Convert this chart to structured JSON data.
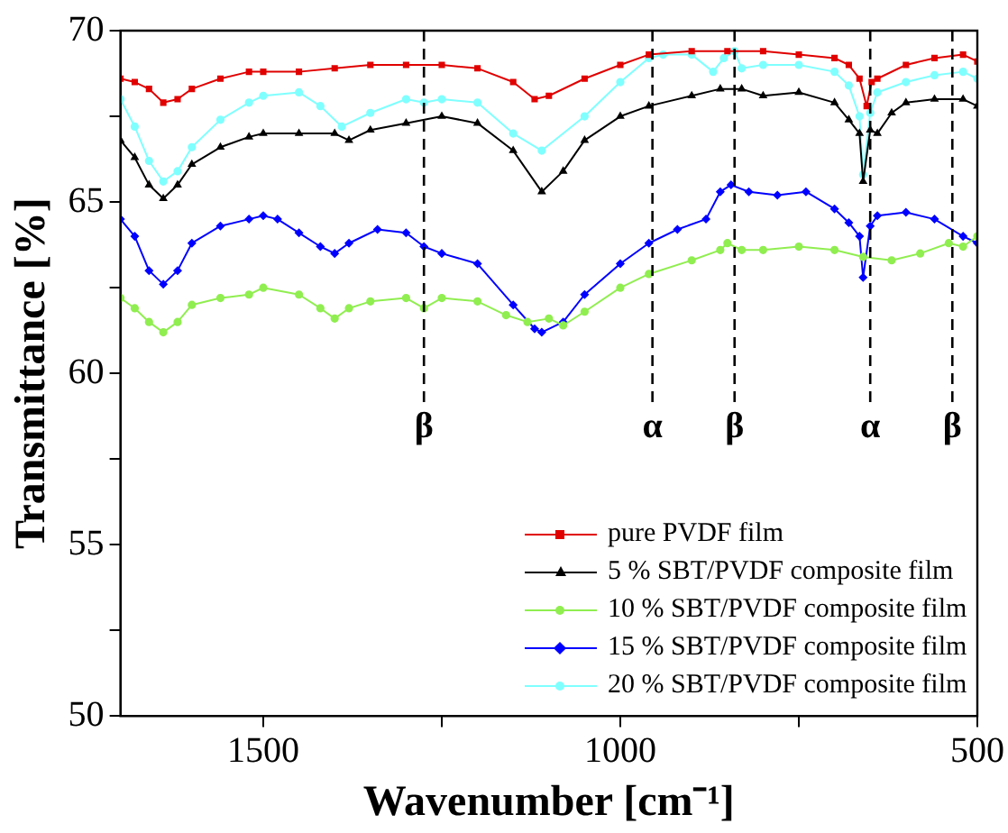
{
  "chart_data": {
    "type": "line",
    "xlabel": "Wavenumber [cm⁻¹]",
    "ylabel": "Transmittance [%]",
    "xlim": [
      1700,
      500
    ],
    "xticks": [
      1500,
      {
        "value": 1250,
        "label": null
      },
      1000,
      {
        "value": 750,
        "label": null
      },
      500
    ],
    "ylim": [
      50,
      70
    ],
    "yticks": [
      50,
      {
        "value": 52.5,
        "label": null
      },
      55,
      {
        "value": 57.5,
        "label": null
      },
      60,
      {
        "value": 62.5,
        "label": null
      },
      65,
      {
        "value": 67.5,
        "label": null
      },
      70
    ],
    "grid": false,
    "legend": "bottom right",
    "line_style": "solid",
    "ref_lines": [
      {
        "axis": "x",
        "value": 1275,
        "label": "β",
        "color": "#000000",
        "line_style": "dashed"
      },
      {
        "axis": "x",
        "value": 955,
        "label": "α",
        "color": "#000000",
        "line_style": "dashed"
      },
      {
        "axis": "x",
        "value": 840,
        "label": "β",
        "color": "#000000",
        "line_style": "dashed"
      },
      {
        "axis": "x",
        "value": 650,
        "label": "α",
        "color": "#000000",
        "line_style": "dashed"
      },
      {
        "axis": "x",
        "value": 535,
        "label": "β",
        "color": "#000000",
        "line_style": "dashed"
      }
    ],
    "series": [
      {
        "name": "pure PVDF film",
        "color": "#e00000",
        "marker": "square",
        "x": [
          1700,
          1680,
          1660,
          1640,
          1620,
          1600,
          1560,
          1520,
          1500,
          1450,
          1400,
          1350,
          1300,
          1250,
          1200,
          1150,
          1120,
          1100,
          1050,
          1000,
          960,
          900,
          850,
          800,
          750,
          700,
          680,
          665,
          655,
          648,
          640,
          600,
          560,
          520,
          500
        ],
        "values": [
          68.6,
          68.5,
          68.3,
          67.9,
          68.0,
          68.3,
          68.6,
          68.8,
          68.8,
          68.8,
          68.9,
          69.0,
          69.0,
          69.0,
          68.9,
          68.5,
          68.0,
          68.1,
          68.6,
          69.0,
          69.3,
          69.4,
          69.4,
          69.4,
          69.3,
          69.2,
          69.0,
          68.6,
          67.8,
          68.5,
          68.6,
          69.0,
          69.2,
          69.3,
          69.1
        ]
      },
      {
        "name": "5 % SBT/PVDF composite film",
        "color": "#000000",
        "marker": "triangle",
        "x": [
          1700,
          1680,
          1660,
          1640,
          1620,
          1600,
          1560,
          1520,
          1500,
          1450,
          1400,
          1380,
          1350,
          1300,
          1250,
          1200,
          1150,
          1110,
          1080,
          1050,
          1000,
          960,
          900,
          860,
          830,
          800,
          750,
          700,
          680,
          665,
          660,
          650,
          640,
          620,
          600,
          560,
          520,
          500
        ],
        "values": [
          66.8,
          66.3,
          65.5,
          65.1,
          65.5,
          66.1,
          66.6,
          66.9,
          67.0,
          67.0,
          67.0,
          66.8,
          67.1,
          67.3,
          67.5,
          67.3,
          66.5,
          65.3,
          65.9,
          66.8,
          67.5,
          67.8,
          68.1,
          68.3,
          68.3,
          68.1,
          68.2,
          67.9,
          67.4,
          67.0,
          65.6,
          67.1,
          67.0,
          67.6,
          67.9,
          68.0,
          68.0,
          67.8
        ]
      },
      {
        "name": "10 % SBT/PVDF composite film",
        "color": "#90ee50",
        "marker": "circle",
        "x": [
          1700,
          1680,
          1660,
          1640,
          1620,
          1600,
          1560,
          1520,
          1500,
          1450,
          1420,
          1400,
          1380,
          1350,
          1300,
          1275,
          1250,
          1200,
          1160,
          1130,
          1100,
          1080,
          1050,
          1000,
          960,
          900,
          860,
          850,
          830,
          800,
          750,
          700,
          660,
          620,
          580,
          540,
          520,
          500
        ],
        "values": [
          62.2,
          61.9,
          61.5,
          61.2,
          61.5,
          62.0,
          62.2,
          62.3,
          62.5,
          62.3,
          61.9,
          61.6,
          61.9,
          62.1,
          62.2,
          61.9,
          62.2,
          62.1,
          61.7,
          61.5,
          61.6,
          61.4,
          61.8,
          62.5,
          62.9,
          63.3,
          63.6,
          63.8,
          63.6,
          63.6,
          63.7,
          63.6,
          63.4,
          63.3,
          63.5,
          63.8,
          63.7,
          64.0
        ]
      },
      {
        "name": "15 % SBT/PVDF composite film",
        "color": "#0000ff",
        "marker": "diamond",
        "x": [
          1700,
          1680,
          1660,
          1640,
          1620,
          1600,
          1560,
          1520,
          1500,
          1480,
          1450,
          1420,
          1400,
          1380,
          1340,
          1300,
          1275,
          1250,
          1200,
          1150,
          1120,
          1110,
          1080,
          1050,
          1000,
          960,
          920,
          880,
          860,
          845,
          820,
          780,
          740,
          700,
          680,
          665,
          660,
          650,
          640,
          600,
          560,
          520,
          500
        ],
        "values": [
          64.5,
          64.0,
          63.0,
          62.6,
          63.0,
          63.8,
          64.3,
          64.5,
          64.6,
          64.5,
          64.1,
          63.7,
          63.5,
          63.8,
          64.2,
          64.1,
          63.7,
          63.5,
          63.2,
          62.0,
          61.3,
          61.2,
          61.5,
          62.3,
          63.2,
          63.8,
          64.2,
          64.5,
          65.3,
          65.5,
          65.3,
          65.2,
          65.3,
          64.8,
          64.4,
          64.0,
          62.8,
          64.3,
          64.6,
          64.7,
          64.5,
          64.0,
          63.8
        ]
      },
      {
        "name": "20 % SBT/PVDF composite film",
        "color": "#80ffff",
        "marker": "circle",
        "x": [
          1700,
          1680,
          1660,
          1640,
          1620,
          1600,
          1560,
          1520,
          1500,
          1450,
          1420,
          1390,
          1350,
          1300,
          1275,
          1250,
          1200,
          1150,
          1110,
          1050,
          1000,
          960,
          940,
          900,
          870,
          855,
          840,
          830,
          800,
          750,
          700,
          680,
          665,
          660,
          650,
          640,
          600,
          560,
          520,
          500
        ],
        "values": [
          68.0,
          67.2,
          66.2,
          65.6,
          65.9,
          66.6,
          67.4,
          67.9,
          68.1,
          68.2,
          67.8,
          67.2,
          67.6,
          68.0,
          67.9,
          68.0,
          67.9,
          67.0,
          66.5,
          67.5,
          68.5,
          69.2,
          69.3,
          69.3,
          68.8,
          69.2,
          69.4,
          68.9,
          69.0,
          69.0,
          68.8,
          68.4,
          67.5,
          65.8,
          67.6,
          68.2,
          68.5,
          68.7,
          68.8,
          68.6
        ]
      }
    ]
  }
}
